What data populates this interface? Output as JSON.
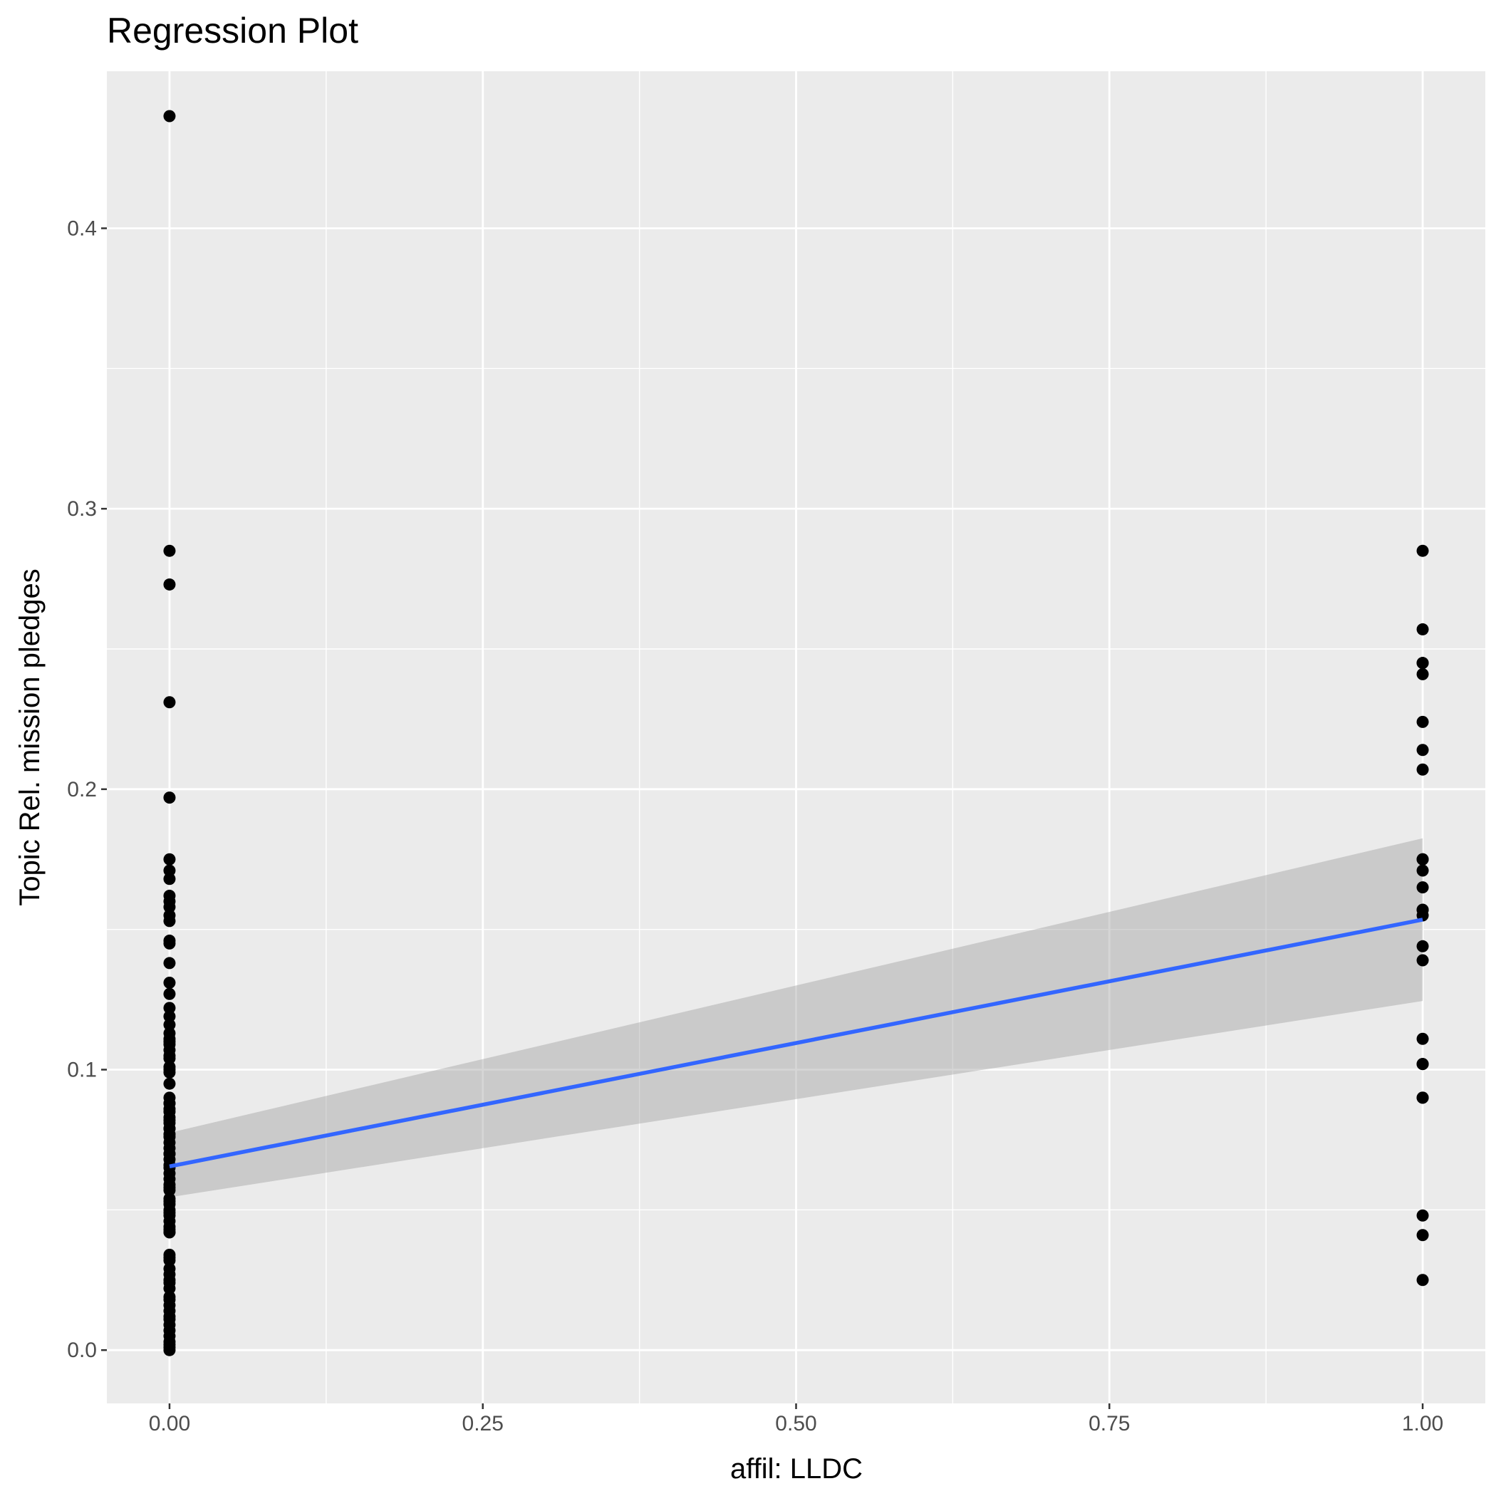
{
  "chart_data": {
    "type": "scatter",
    "title": "Regression Plot",
    "xlabel": "affil: LLDC",
    "ylabel": "Topic Rel. mission pledges",
    "xlim": [
      -0.05,
      1.05
    ],
    "ylim": [
      -0.019,
      0.456
    ],
    "x_ticks": [
      0.0,
      0.25,
      0.5,
      0.75,
      1.0
    ],
    "x_tick_labels": [
      "0.00",
      "0.25",
      "0.50",
      "0.75",
      "1.00"
    ],
    "y_ticks": [
      0.0,
      0.1,
      0.2,
      0.3,
      0.4
    ],
    "y_tick_labels": [
      "0.0",
      "0.1",
      "0.2",
      "0.3",
      "0.4"
    ],
    "grid": true,
    "legend": "none",
    "colors": {
      "panel": "#ebebeb",
      "grid": "#ffffff",
      "points": "#000000",
      "fit_line": "#3366ff",
      "ribbon": "#999999"
    },
    "series": [
      {
        "kind": "points",
        "x": [
          0,
          0,
          0,
          0,
          0,
          0,
          0,
          0,
          0,
          0,
          0,
          0,
          0,
          0,
          0,
          0,
          0,
          0,
          0,
          0,
          0,
          0,
          0,
          0,
          0,
          0,
          0,
          0,
          0,
          0,
          0,
          0,
          0,
          0,
          0,
          0,
          0,
          0,
          0,
          0,
          0,
          0,
          0,
          0,
          0,
          0,
          0,
          0,
          0,
          0,
          0,
          0,
          0,
          0,
          0,
          0,
          0,
          0,
          0,
          0,
          0,
          0,
          0,
          0,
          0,
          0,
          0,
          0,
          0,
          0,
          0,
          0,
          0,
          0,
          0,
          0,
          0,
          0,
          0,
          0,
          0,
          0,
          0,
          0,
          0,
          0,
          0,
          0,
          1,
          1,
          1,
          1,
          1,
          1,
          1,
          1,
          1,
          1,
          1,
          1,
          1,
          1,
          1,
          1,
          1,
          1,
          1,
          1,
          1,
          1,
          1,
          1,
          1
        ],
        "y": [
          0.44,
          0.285,
          0.273,
          0.231,
          0.197,
          0.175,
          0.171,
          0.168,
          0.162,
          0.16,
          0.158,
          0.155,
          0.153,
          0.146,
          0.145,
          0.138,
          0.131,
          0.127,
          0.122,
          0.119,
          0.116,
          0.113,
          0.111,
          0.109,
          0.107,
          0.104,
          0.101,
          0.099,
          0.095,
          0.09,
          0.088,
          0.086,
          0.083,
          0.081,
          0.079,
          0.077,
          0.074,
          0.072,
          0.07,
          0.068,
          0.065,
          0.063,
          0.061,
          0.059,
          0.057,
          0.054,
          0.052,
          0.05,
          0.048,
          0.044,
          0.042,
          0.034,
          0.032,
          0.029,
          0.027,
          0.025,
          0.022,
          0.019,
          0.016,
          0.014,
          0.012,
          0.009,
          0.007,
          0.003,
          0.001,
          0.0,
          0.088,
          0.085,
          0.079,
          0.066,
          0.049,
          0.043,
          0.1,
          0.105,
          0.11,
          0.082,
          0.076,
          0.07,
          0.058,
          0.053,
          0.046,
          0.042,
          0.033,
          0.024,
          0.018,
          0.011,
          0.005,
          0.002,
          0.285,
          0.257,
          0.245,
          0.241,
          0.224,
          0.214,
          0.207,
          0.175,
          0.171,
          0.165,
          0.157,
          0.155,
          0.144,
          0.139,
          0.111,
          0.102,
          0.09,
          0.048,
          0.041,
          0.025,
          0.175,
          0.157,
          0.102,
          0.09,
          0.245
        ]
      },
      {
        "kind": "fit",
        "x": [
          0,
          1
        ],
        "y": [
          0.0655,
          0.1535
        ],
        "ci_lower": [
          0.0545,
          0.1245
        ],
        "ci_upper": [
          0.0775,
          0.1825
        ]
      }
    ]
  }
}
